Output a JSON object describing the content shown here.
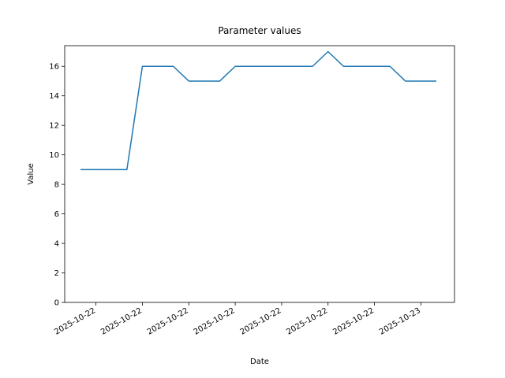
{
  "chart_data": {
    "type": "line",
    "title": "Parameter values",
    "x_label": "Date",
    "y_label": "Value",
    "categories": [
      null,
      "2025-10-22",
      null,
      null,
      "2025-10-22",
      null,
      null,
      "2025-10-22",
      null,
      null,
      "2025-10-22",
      null,
      null,
      "2025-10-22",
      null,
      null,
      "2025-10-22",
      null,
      null,
      "2025-10-22",
      null,
      null,
      "2025-10-23",
      null
    ],
    "values": [
      9,
      9,
      9,
      9,
      16,
      16,
      16,
      15,
      15,
      15,
      16,
      16,
      16,
      16,
      16,
      16,
      17,
      16,
      16,
      16,
      16,
      15,
      15,
      15
    ],
    "color": "#1f77b4",
    "ylim": [
      0,
      17.4
    ],
    "yticks": [
      0,
      2,
      4,
      6,
      8,
      10,
      12,
      14,
      16
    ]
  }
}
